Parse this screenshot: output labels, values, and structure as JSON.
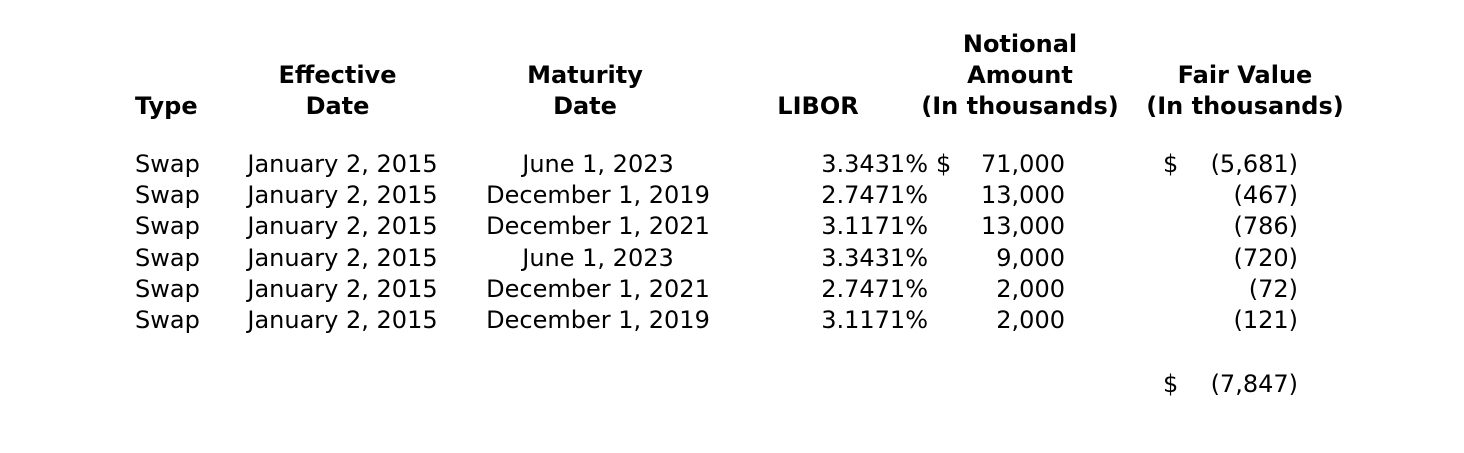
{
  "colors": {
    "text": "#000000",
    "background": "#ffffff"
  },
  "headers": {
    "type": "Type",
    "effective": {
      "line1": "Effective",
      "line2": "Date"
    },
    "maturity": {
      "line1": "Maturity",
      "line2": "Date"
    },
    "libor": "LIBOR",
    "notional": {
      "line1": "Notional",
      "line2": "Amount",
      "line3": "(In thousands)"
    },
    "fair_value": {
      "line1": "Fair Value",
      "line2": "(In thousands)"
    }
  },
  "rows": [
    {
      "type": "Swap",
      "effective_date": "January 2, 2015",
      "maturity_date": "June 1, 2023",
      "libor": "3.3431%",
      "notional_currency": "$",
      "notional": "71,000",
      "fair_value_currency": "$",
      "fair_value": "(5,681)"
    },
    {
      "type": "Swap",
      "effective_date": "January 2, 2015",
      "maturity_date": "December 1, 2019",
      "libor": "2.7471%",
      "notional_currency": "",
      "notional": "13,000",
      "fair_value_currency": "",
      "fair_value": "(467)"
    },
    {
      "type": "Swap",
      "effective_date": "January 2, 2015",
      "maturity_date": "December 1, 2021",
      "libor": "3.1171%",
      "notional_currency": "",
      "notional": "13,000",
      "fair_value_currency": "",
      "fair_value": "(786)"
    },
    {
      "type": "Swap",
      "effective_date": "January 2, 2015",
      "maturity_date": "June 1, 2023",
      "libor": "3.3431%",
      "notional_currency": "",
      "notional": "9,000",
      "fair_value_currency": "",
      "fair_value": "(720)"
    },
    {
      "type": "Swap",
      "effective_date": "January 2, 2015",
      "maturity_date": "December 1, 2021",
      "libor": "2.7471%",
      "notional_currency": "",
      "notional": "2,000",
      "fair_value_currency": "",
      "fair_value": "(72)"
    },
    {
      "type": "Swap",
      "effective_date": "January 2, 2015",
      "maturity_date": "December 1, 2019",
      "libor": "3.1171%",
      "notional_currency": "",
      "notional": "2,000",
      "fair_value_currency": "",
      "fair_value": "(121)"
    }
  ],
  "total": {
    "currency": "$",
    "fair_value": "(7,847)"
  }
}
